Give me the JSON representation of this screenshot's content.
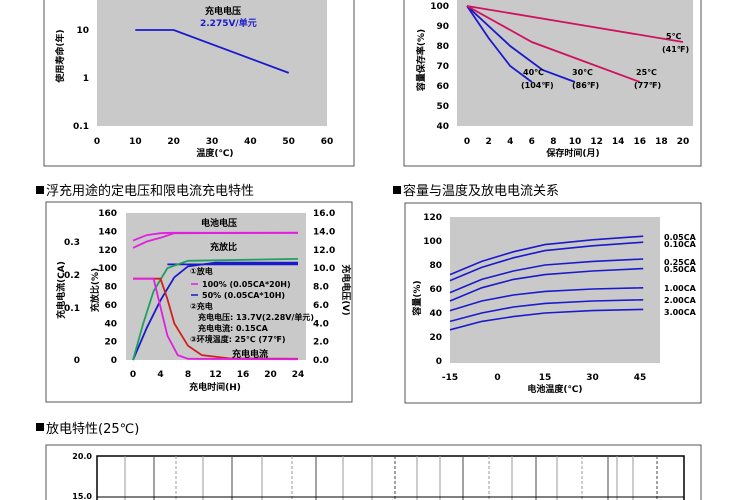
{
  "charts": [
    {
      "id": "life-vs-voltage",
      "type": "line",
      "xlabel": "温度(℃)",
      "ylabel": "使用寿命(年)",
      "x_ticks": [
        0,
        10,
        20,
        30,
        40,
        50,
        60
      ],
      "y_ticks": [
        {
          "v": 10,
          "t": "10"
        },
        {
          "v": 1,
          "t": "1"
        },
        {
          "v": 0.1,
          "t": "0.1"
        }
      ],
      "y_scale": "log",
      "series": [
        {
          "color": "#1a1acc",
          "points": [
            [
              10,
              10
            ],
            [
              20,
              10
            ],
            [
              50,
              1.28
            ]
          ]
        }
      ],
      "annotations": [
        "充电电压",
        "2.275V/单元"
      ]
    },
    {
      "id": "capacity-retention",
      "type": "line",
      "xlabel": "保存时间(月)",
      "ylabel": "容量保存率(%)",
      "x_ticks": [
        0,
        2,
        4,
        6,
        8,
        10,
        12,
        14,
        16,
        18,
        20
      ],
      "y_ticks": [
        100,
        90,
        80,
        70,
        60,
        50,
        40
      ],
      "series": [
        {
          "name": "40℃ (104℉)",
          "color": "#1a1acc",
          "points": [
            [
              0,
              100
            ],
            [
              2,
              84
            ],
            [
              4,
              70
            ],
            [
              6,
              62
            ]
          ]
        },
        {
          "name": "30℃ (86℉)",
          "color": "#1a1acc",
          "points": [
            [
              0,
              100
            ],
            [
              4,
              80
            ],
            [
              7,
              68
            ],
            [
              10,
              62
            ]
          ]
        },
        {
          "name": "25℃ (77℉)",
          "color": "#d01060",
          "points": [
            [
              0,
              100
            ],
            [
              6,
              82
            ],
            [
              11,
              72
            ],
            [
              16,
              62
            ]
          ]
        },
        {
          "name": "5℃ (41℉)",
          "color": "#d01060",
          "points": [
            [
              0,
              100
            ],
            [
              10,
              91
            ],
            [
              20,
              82
            ]
          ]
        }
      ],
      "labels": [
        {
          "l1": "40℃",
          "l2": "(104℉)"
        },
        {
          "l1": "30℃",
          "l2": "(86℉)"
        },
        {
          "l1": "25℃",
          "l2": "(77℉)"
        },
        {
          "l1": "5℃",
          "l2": "(41℉)"
        }
      ]
    },
    {
      "id": "float-charge",
      "type": "line",
      "title": "浮充用途的定电压和限电流充电特性",
      "xlabel": "充电时间(H)",
      "x_ticks": [
        0,
        4,
        8,
        12,
        16,
        20,
        24
      ],
      "y_left1_ticks": [
        "160",
        "140",
        "120",
        "100",
        "80",
        "60",
        "40",
        "20",
        "0"
      ],
      "y_left1_label": "充放比(%)",
      "y_left2_ticks": [
        "0.3",
        "0.2",
        "0.1",
        "0"
      ],
      "y_left2_label": "充电电流(CA)",
      "y_right_ticks": [
        "16.0",
        "14.0",
        "12.0",
        "10.0",
        "8.0",
        "6.0",
        "4.0",
        "2.0",
        "0.0"
      ],
      "y_right_label": "充电电压(V)",
      "series": [
        {
          "name": "充电电压",
          "color": "#e020e0",
          "points": [
            [
              0,
              13.0
            ],
            [
              2,
              13.6
            ],
            [
              4,
              13.8
            ],
            [
              5.5,
              13.85
            ],
            [
              24,
              13.85
            ]
          ]
        },
        {
          "name": "充电电压2",
          "color": "#e020e0",
          "points": [
            [
              0,
              12.2
            ],
            [
              2,
              12.9
            ],
            [
              4,
              13.3
            ],
            [
              6,
              13.8
            ],
            [
              24,
              13.85
            ]
          ]
        },
        {
          "name": "充放比 100%",
          "color": "#1a1acc",
          "points": [
            [
              0,
              0
            ],
            [
              2,
              35
            ],
            [
              4,
              65
            ],
            [
              6,
              90
            ],
            [
              8,
              102
            ],
            [
              12,
              106
            ],
            [
              24,
              106
            ]
          ]
        },
        {
          "name": "充放比 50%",
          "color": "#20a060",
          "points": [
            [
              0,
              0
            ],
            [
              1.5,
              40
            ],
            [
              3,
              75
            ],
            [
              5,
              100
            ],
            [
              8,
              108
            ],
            [
              24,
              110
            ]
          ]
        },
        {
          "name": "充电电流 100%",
          "color": "#d02020",
          "points": [
            [
              0,
              0.2
            ],
            [
              4,
              0.2
            ],
            [
              5,
              0.15
            ],
            [
              6,
              0.09
            ],
            [
              8,
              0.035
            ],
            [
              10,
              0.012
            ],
            [
              14,
              0.004
            ],
            [
              24,
              0.003
            ]
          ]
        },
        {
          "name": "充电电流 50%",
          "color": "#e020e0",
          "points": [
            [
              0,
              0.2
            ],
            [
              3,
              0.2
            ],
            [
              4,
              0.13
            ],
            [
              5,
              0.06
            ],
            [
              6.5,
              0.012
            ],
            [
              8,
              0.003
            ],
            [
              24,
              0.002
            ]
          ]
        }
      ],
      "annotations": {
        "voltage": "电池电压",
        "ratio": "充放比",
        "current": "充电电流",
        "discharge_title": "①放电",
        "discharge_100": "100% (0.05CA*20H)",
        "discharge_50": "50% (0.05CA*10H)",
        "charge_title": "②充电",
        "charge_voltage": "充电电压: 13.7V(2.28V/单元)",
        "charge_current": "充电电流: 0.15CA",
        "ambient": "③环境温度: 25℃ (77℉)"
      }
    },
    {
      "id": "capacity-temp",
      "type": "line",
      "title": "容量与温度及放电电流关系",
      "xlabel": "电池温度(℃)",
      "ylabel": "容量(%)",
      "x_ticks": [
        -15,
        0,
        15,
        30,
        45
      ],
      "y_ticks": [
        120,
        100,
        80,
        60,
        40,
        20,
        0
      ],
      "series": [
        {
          "name": "0.05CA",
          "color": "#1a1acc",
          "points": [
            [
              -15,
              72
            ],
            [
              -5,
              83
            ],
            [
              5,
              91
            ],
            [
              15,
              97
            ],
            [
              30,
              101
            ],
            [
              46,
              104
            ]
          ]
        },
        {
          "name": "0.10CA",
          "color": "#1a1acc",
          "points": [
            [
              -15,
              67
            ],
            [
              -5,
              78
            ],
            [
              5,
              86
            ],
            [
              15,
              92
            ],
            [
              30,
              96
            ],
            [
              46,
              99
            ]
          ]
        },
        {
          "name": "0.25CA",
          "color": "#1a1acc",
          "points": [
            [
              -15,
              57
            ],
            [
              -5,
              68
            ],
            [
              5,
              75
            ],
            [
              15,
              80
            ],
            [
              30,
              83
            ],
            [
              46,
              85
            ]
          ]
        },
        {
          "name": "0.50CA",
          "color": "#1a1acc",
          "points": [
            [
              -15,
              50
            ],
            [
              -5,
              61
            ],
            [
              5,
              68
            ],
            [
              15,
              72
            ],
            [
              30,
              75
            ],
            [
              46,
              77
            ]
          ]
        },
        {
          "name": "1.00CA",
          "color": "#1a1acc",
          "points": [
            [
              -15,
              42
            ],
            [
              -5,
              50
            ],
            [
              5,
              55
            ],
            [
              15,
              58
            ],
            [
              30,
              60
            ],
            [
              46,
              61
            ]
          ]
        },
        {
          "name": "2.00CA",
          "color": "#1a1acc",
          "points": [
            [
              -15,
              33
            ],
            [
              -5,
              40
            ],
            [
              5,
              45
            ],
            [
              15,
              48
            ],
            [
              30,
              50
            ],
            [
              46,
              51
            ]
          ]
        },
        {
          "name": "3.00CA",
          "color": "#1a1acc",
          "points": [
            [
              -15,
              26
            ],
            [
              -5,
              33
            ],
            [
              5,
              37
            ],
            [
              15,
              40
            ],
            [
              30,
              42
            ],
            [
              46,
              43
            ]
          ]
        }
      ],
      "legend": [
        "0.05CA",
        "0.10CA",
        "0.25CA",
        "0.50CA",
        "1.00CA",
        "2.00CA",
        "3.00CA"
      ]
    },
    {
      "id": "discharge-25",
      "type": "line",
      "title": "放电特性(25℃)",
      "y_ticks": [
        "20.0",
        "15.0"
      ]
    }
  ]
}
